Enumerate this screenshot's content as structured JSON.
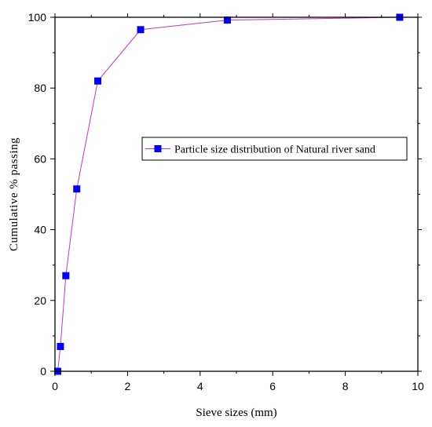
{
  "chart_data": {
    "type": "line",
    "title": "",
    "xlabel": "Sieve sizes (mm)",
    "ylabel": "Cumulative % passing",
    "xlim": [
      0,
      10
    ],
    "ylim": [
      0,
      100
    ],
    "xticks": [
      0,
      2,
      4,
      6,
      8,
      10
    ],
    "yticks": [
      0,
      20,
      40,
      60,
      80,
      100
    ],
    "grid": false,
    "legend_position": "center-right",
    "series": [
      {
        "name": "Particle size distribution of Natural river sand",
        "color": "#cc33cc",
        "marker_color": "#0000ff",
        "marker": "square",
        "points": [
          {
            "x": 0.075,
            "y": 0
          },
          {
            "x": 0.15,
            "y": 7
          },
          {
            "x": 0.3,
            "y": 27
          },
          {
            "x": 0.6,
            "y": 51.5
          },
          {
            "x": 1.18,
            "y": 82
          },
          {
            "x": 2.36,
            "y": 96.5
          },
          {
            "x": 4.75,
            "y": 99.2
          },
          {
            "x": 9.5,
            "y": 100
          }
        ]
      }
    ]
  }
}
